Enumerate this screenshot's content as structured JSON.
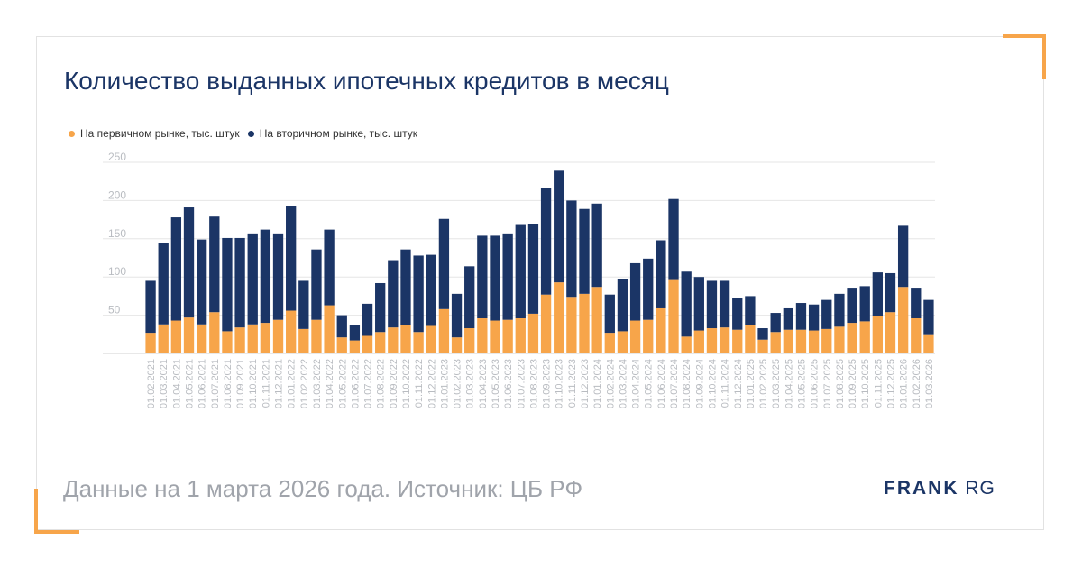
{
  "title": "Количество выданных ипотечных кредитов в месяц",
  "footer": "Данные на 1 марта 2026 года. Источник: ЦБ РФ",
  "logo": {
    "part1": "FRANK",
    "part2": " RG"
  },
  "colors": {
    "primary": "#f7a54a",
    "secondary": "#1b3566",
    "accent_corner": "#f7a54a"
  },
  "chart_data": {
    "type": "bar",
    "stacked": true,
    "title": "Количество выданных ипотечных кредитов в месяц",
    "xlabel": "",
    "ylabel": "",
    "ylim": [
      0,
      250
    ],
    "yticks": [
      50,
      100,
      150,
      200,
      250
    ],
    "grid": true,
    "legend_position": "top-left",
    "categories": [
      "01.02.2021",
      "01.03.2021",
      "01.04.2021",
      "01.05.2021",
      "01.06.2021",
      "01.07.2021",
      "01.08.2021",
      "01.09.2021",
      "01.10.2021",
      "01.11.2021",
      "01.12.2021",
      "01.01.2022",
      "01.02.2022",
      "01.03.2022",
      "01.04.2022",
      "01.05.2022",
      "01.06.2022",
      "01.07.2022",
      "01.08.2022",
      "01.09.2022",
      "01.10.2022",
      "01.11.2022",
      "01.12.2022",
      "01.01.2023",
      "01.02.2023",
      "01.03.2023",
      "01.04.2023",
      "01.05.2023",
      "01.06.2023",
      "01.07.2023",
      "01.08.2023",
      "01.09.2023",
      "01.10.2023",
      "01.11.2023",
      "01.12.2023",
      "01.01.2024",
      "01.02.2024",
      "01.03.2024",
      "01.04.2024",
      "01.05.2024",
      "01.06.2024",
      "01.07.2024",
      "01.08.2024",
      "01.09.2024",
      "01.10.2024",
      "01.11.2024",
      "01.12.2024",
      "01.01.2025",
      "01.02.2025",
      "01.03.2025",
      "01.04.2025",
      "01.05.2025",
      "01.06.2025",
      "01.07.2025",
      "01.08.2025",
      "01.09.2025",
      "01.10.2025",
      "01.11.2025",
      "01.12.2025",
      "01.01.2026",
      "01.02.2026",
      "01.03.2026"
    ],
    "series": [
      {
        "name": "На первичном рынке, тыс. штук",
        "color": "#f7a54a",
        "values": [
          27,
          38,
          43,
          47,
          38,
          54,
          29,
          34,
          38,
          40,
          44,
          56,
          32,
          44,
          63,
          21,
          17,
          23,
          28,
          34,
          37,
          28,
          36,
          58,
          21,
          33,
          46,
          43,
          44,
          46,
          52,
          77,
          93,
          74,
          78,
          87,
          27,
          29,
          43,
          44,
          59,
          96,
          22,
          30,
          33,
          34,
          31,
          37,
          18,
          28,
          31,
          31,
          30,
          32,
          35,
          40,
          42,
          49,
          54,
          87,
          46,
          24
        ]
      },
      {
        "name": "На вторичном рынке, тыс. штук",
        "color": "#1b3566",
        "values": [
          68,
          107,
          135,
          144,
          111,
          125,
          122,
          117,
          119,
          122,
          113,
          137,
          63,
          92,
          99,
          29,
          20,
          42,
          64,
          88,
          99,
          100,
          93,
          118,
          57,
          81,
          108,
          111,
          113,
          122,
          117,
          139,
          146,
          126,
          111,
          109,
          50,
          68,
          75,
          80,
          89,
          106,
          85,
          70,
          62,
          61,
          41,
          38,
          15,
          25,
          28,
          35,
          34,
          38,
          43,
          46,
          46,
          57,
          51,
          80,
          40,
          46
        ]
      }
    ]
  }
}
